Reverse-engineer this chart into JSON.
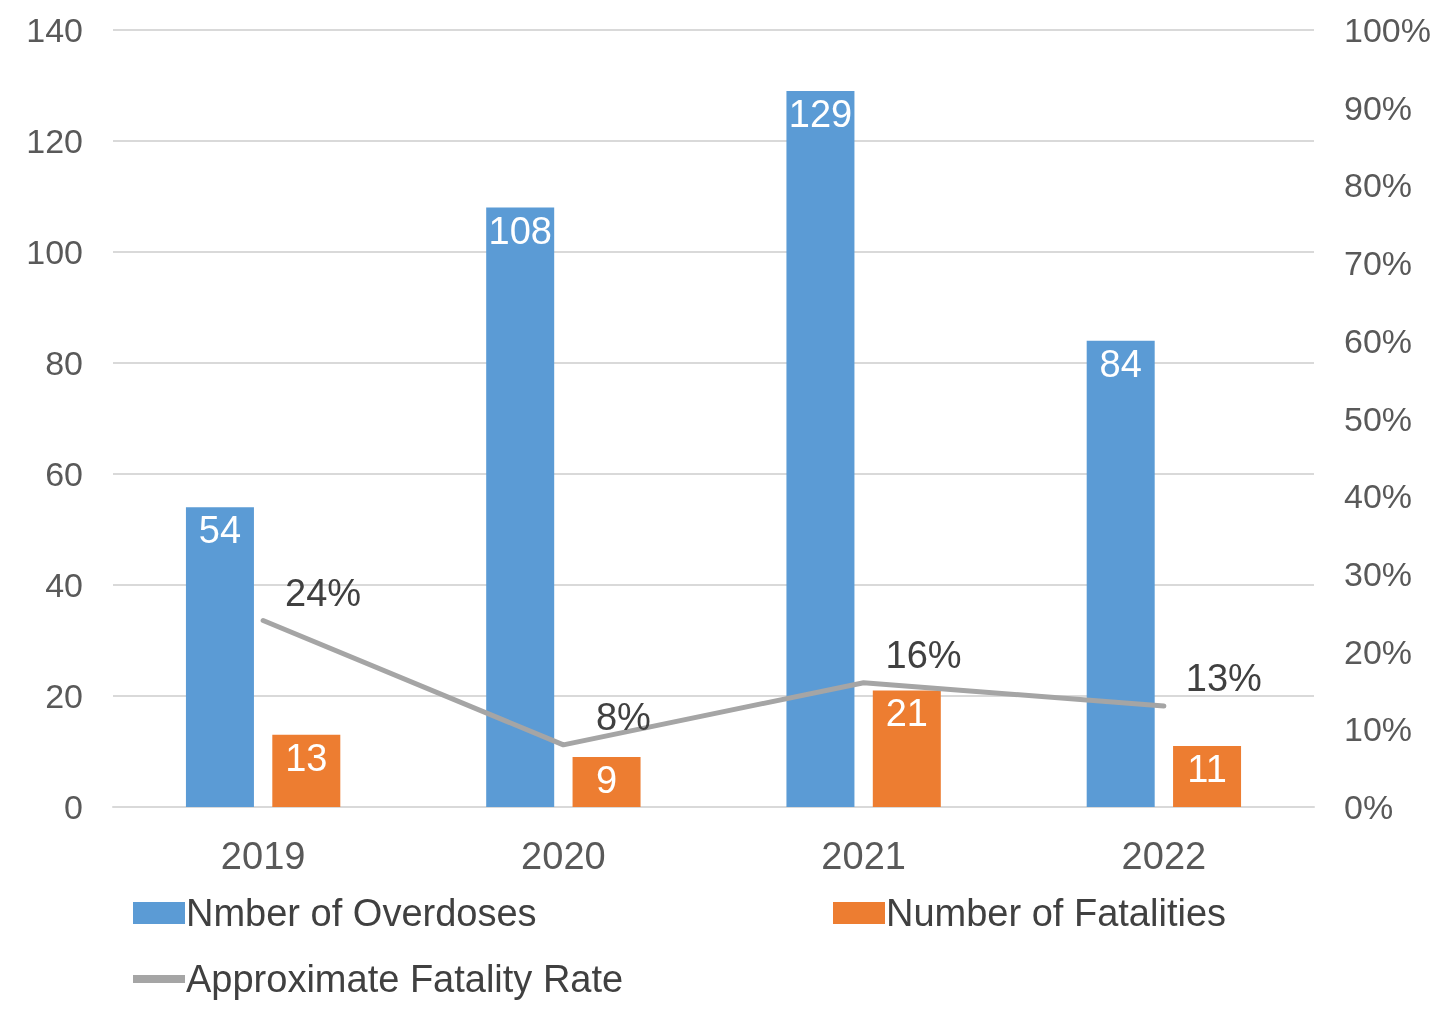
{
  "chart_data": {
    "type": "bar",
    "categories": [
      "2019",
      "2020",
      "2021",
      "2022"
    ],
    "series": [
      {
        "name": "Nmber of Overdoses",
        "color": "#5b9bd5",
        "values": [
          54,
          108,
          129,
          84
        ],
        "value_labels": [
          "54",
          "108",
          "129",
          "84"
        ]
      },
      {
        "name": "Number of Fatalities",
        "color": "#ed7d31",
        "values": [
          13,
          9,
          21,
          11
        ],
        "value_labels": [
          "13",
          "9",
          "21",
          "11"
        ]
      },
      {
        "name": "Approximate Fatality Rate",
        "type": "line",
        "axis": "y2",
        "color": "#a5a5a5",
        "values": [
          24,
          8,
          16,
          13
        ],
        "value_labels": [
          "24%",
          "8%",
          "16%",
          "13%"
        ],
        "marker": "none",
        "line_style": "solid"
      }
    ],
    "ylim": [
      0,
      140
    ],
    "yticks": [
      0,
      20,
      40,
      60,
      80,
      100,
      120,
      140
    ],
    "y2lim": [
      0,
      100
    ],
    "y2ticks": [
      {
        "value": 0,
        "label": "0%"
      },
      {
        "value": 10,
        "label": "10%"
      },
      {
        "value": 20,
        "label": "20%"
      },
      {
        "value": 30,
        "label": "30%"
      },
      {
        "value": 40,
        "label": "40%"
      },
      {
        "value": 50,
        "label": "50%"
      },
      {
        "value": 60,
        "label": "60%"
      },
      {
        "value": 70,
        "label": "70%"
      },
      {
        "value": 80,
        "label": "80%"
      },
      {
        "value": 90,
        "label": "90%"
      },
      {
        "value": 100,
        "label": "100%"
      }
    ],
    "grid": "y",
    "legend": "bottom"
  }
}
